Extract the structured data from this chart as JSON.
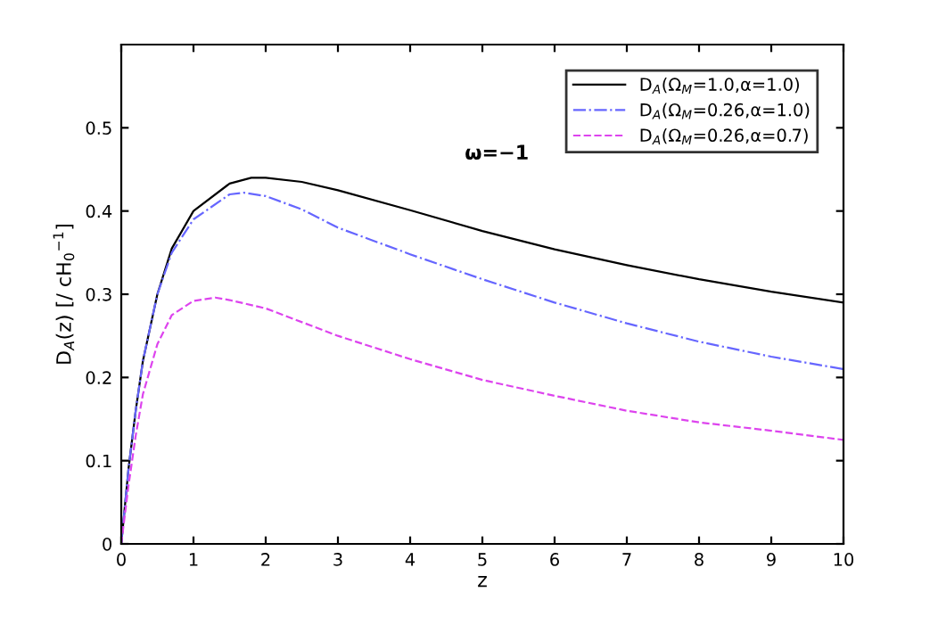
{
  "chart_data": {
    "type": "line",
    "xlabel": "z",
    "ylabel": "D$_{A}$(z) [/ cH$_{0}$$^{−1}$]",
    "annotations": [
      "ω=−1"
    ],
    "xlim": [
      0,
      10
    ],
    "ylim": [
      0,
      0.6
    ],
    "xticks": [
      0,
      1,
      2,
      3,
      4,
      5,
      6,
      7,
      8,
      9,
      10
    ],
    "yticks": [
      0,
      0.1,
      0.2,
      0.3,
      0.4,
      0.5
    ],
    "grid": false,
    "legend": "top right",
    "series": [
      {
        "name": "D$_{A}$(Ω$_{M}$=1.0,α=1.0)",
        "color": "#000000",
        "line_style": "solid",
        "x": [
          0,
          0.1,
          0.2,
          0.3,
          0.5,
          0.7,
          1,
          1.5,
          1.8,
          2,
          2.5,
          3,
          4,
          5,
          6,
          7,
          8,
          9,
          10
        ],
        "values": [
          0,
          0.09,
          0.16,
          0.22,
          0.3,
          0.355,
          0.4,
          0.433,
          0.44,
          0.44,
          0.435,
          0.425,
          0.401,
          0.376,
          0.354,
          0.335,
          0.318,
          0.303,
          0.29
        ]
      },
      {
        "name": "D$_{A}$(Ω$_{M}$=0.26,α=1.0)",
        "color": "#6666ff",
        "line_style": "dashdot",
        "x": [
          0,
          0.1,
          0.2,
          0.3,
          0.5,
          0.7,
          1,
          1.5,
          1.7,
          2,
          2.5,
          3,
          4,
          5,
          6,
          7,
          8,
          9,
          10
        ],
        "values": [
          0,
          0.09,
          0.16,
          0.22,
          0.3,
          0.35,
          0.39,
          0.42,
          0.422,
          0.418,
          0.402,
          0.38,
          0.348,
          0.318,
          0.29,
          0.265,
          0.243,
          0.225,
          0.21
        ]
      },
      {
        "name": "D$_{A}$(Ω$_{M}$=0.26,α=0.7)",
        "color": "#dd44ee",
        "line_style": "dashed",
        "x": [
          0,
          0.1,
          0.2,
          0.3,
          0.5,
          0.7,
          1,
          1.3,
          1.5,
          2,
          3,
          4,
          5,
          6,
          7,
          8,
          9,
          10
        ],
        "values": [
          0,
          0.07,
          0.13,
          0.18,
          0.24,
          0.275,
          0.292,
          0.296,
          0.293,
          0.283,
          0.25,
          0.222,
          0.197,
          0.178,
          0.16,
          0.146,
          0.136,
          0.125
        ]
      }
    ]
  }
}
